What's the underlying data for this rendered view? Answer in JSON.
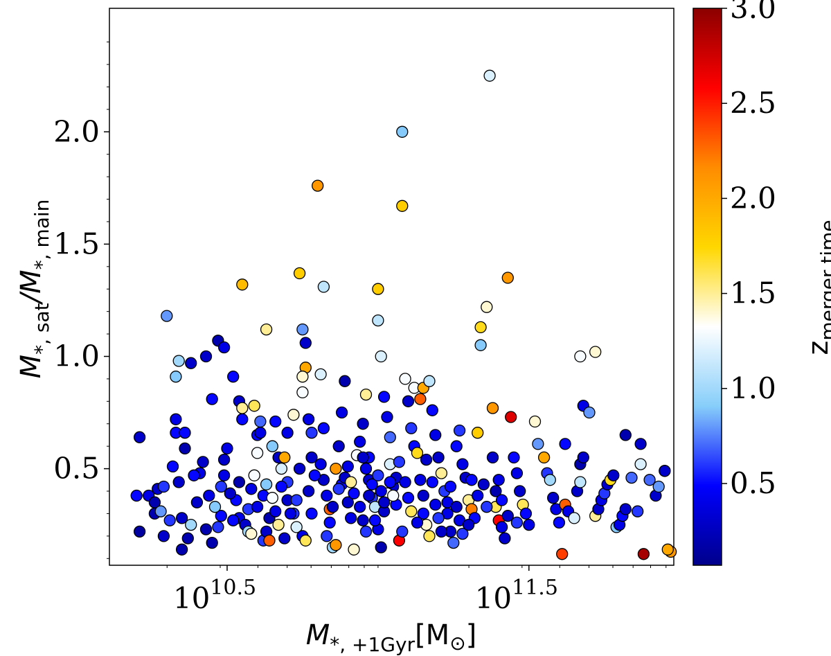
{
  "chart_data": {
    "type": "scatter",
    "title": "",
    "xlabel": {
      "main": "M",
      "sub": "*, +1Gyr",
      "units": "[M",
      "units_sub": "⊙",
      "units_close": "]"
    },
    "ylabel": {
      "num": "M",
      "num_sub": "*, sat",
      "slash": "/",
      "den": "M",
      "den_sub": "*, main"
    },
    "x_scale": "log10",
    "xlim_log10": [
      10.11,
      11.98
    ],
    "ylim": [
      0.07,
      2.55
    ],
    "x_ticks": [
      {
        "log10": 10.5,
        "base": "10",
        "exp": "10.5"
      },
      {
        "log10": 11.5,
        "base": "10",
        "exp": "11.5"
      }
    ],
    "y_ticks": [
      "0.5",
      "1.0",
      "1.5",
      "2.0"
    ],
    "colorbar": {
      "label": "z",
      "label_sub": "merger time",
      "range": [
        0.07,
        3.0
      ],
      "ticks": [
        "0.5",
        "1.0",
        "1.5",
        "2.0",
        "2.5",
        "3.0"
      ],
      "colormap": [
        "#00008b",
        "#0000ff",
        "#87cefa",
        "#ffffff",
        "#ffd700",
        "#ff8c00",
        "#ff0000",
        "#8b0000"
      ]
    },
    "points": [
      [
        10.21,
        0.64,
        0.3
      ],
      [
        10.2,
        0.38,
        0.5
      ],
      [
        10.24,
        0.38,
        0.4
      ],
      [
        10.21,
        0.22,
        0.15
      ],
      [
        10.26,
        0.35,
        0.2
      ],
      [
        10.27,
        0.41,
        0.3
      ],
      [
        10.29,
        0.42,
        0.6
      ],
      [
        10.26,
        0.3,
        0.2
      ],
      [
        10.28,
        0.31,
        0.8
      ],
      [
        10.32,
        0.51,
        0.5
      ],
      [
        10.34,
        0.44,
        0.3
      ],
      [
        10.33,
        0.66,
        0.5
      ],
      [
        10.33,
        0.72,
        0.4
      ],
      [
        10.36,
        0.59,
        0.2
      ],
      [
        10.36,
        0.66,
        0.5
      ],
      [
        10.3,
        1.18,
        0.8
      ],
      [
        10.34,
        0.98,
        1.0
      ],
      [
        10.33,
        0.91,
        0.9
      ],
      [
        10.38,
        0.97,
        0.3
      ],
      [
        10.35,
        0.14,
        0.2
      ],
      [
        10.35,
        0.28,
        0.3
      ],
      [
        10.38,
        0.25,
        1.0
      ],
      [
        10.4,
        0.35,
        0.3
      ],
      [
        10.43,
        0.23,
        0.2
      ],
      [
        10.45,
        0.17,
        0.2
      ],
      [
        10.47,
        0.24,
        0.6
      ],
      [
        10.48,
        0.29,
        0.5
      ],
      [
        10.41,
        0.48,
        0.4
      ],
      [
        10.43,
        1.0,
        0.3
      ],
      [
        10.45,
        0.81,
        0.5
      ],
      [
        10.47,
        1.07,
        0.2
      ],
      [
        10.49,
        1.04,
        0.4
      ],
      [
        10.48,
        0.42,
        0.6
      ],
      [
        10.49,
        0.54,
        0.3
      ],
      [
        10.5,
        0.59,
        0.4
      ],
      [
        10.52,
        0.91,
        0.5
      ],
      [
        10.54,
        0.8,
        0.3
      ],
      [
        10.55,
        0.72,
        0.5
      ],
      [
        10.55,
        0.77,
        1.5
      ],
      [
        10.54,
        0.44,
        0.2
      ],
      [
        10.53,
        0.36,
        0.5
      ],
      [
        10.54,
        0.28,
        0.4
      ],
      [
        10.56,
        0.25,
        0.3
      ],
      [
        10.57,
        0.22,
        1.0
      ],
      [
        10.58,
        0.21,
        1.4
      ],
      [
        10.59,
        0.78,
        1.6
      ],
      [
        10.6,
        0.65,
        0.5
      ],
      [
        10.61,
        0.66,
        0.4
      ],
      [
        10.61,
        0.71,
        0.7
      ],
      [
        10.6,
        0.57,
        1.3
      ],
      [
        10.62,
        0.18,
        0.6
      ],
      [
        10.63,
        0.22,
        0.3
      ],
      [
        10.64,
        0.18,
        2.3
      ],
      [
        10.64,
        0.28,
        0.2
      ],
      [
        10.65,
        0.6,
        0.9
      ],
      [
        10.66,
        0.71,
        0.5
      ],
      [
        10.67,
        0.55,
        0.3
      ],
      [
        10.68,
        0.5,
        1.2
      ],
      [
        10.69,
        0.55,
        2.0
      ],
      [
        10.7,
        0.44,
        0.6
      ],
      [
        10.7,
        0.66,
        0.4
      ],
      [
        10.72,
        0.74,
        1.4
      ],
      [
        10.74,
        0.5,
        0.3
      ],
      [
        10.63,
        1.12,
        1.5
      ],
      [
        10.55,
        1.32,
        1.9
      ],
      [
        10.68,
        0.42,
        0.5
      ],
      [
        10.7,
        0.36,
        0.3
      ],
      [
        10.72,
        0.3,
        0.6
      ],
      [
        10.73,
        0.24,
        1.2
      ],
      [
        10.75,
        0.2,
        0.4
      ],
      [
        10.76,
        0.18,
        1.6
      ],
      [
        10.78,
        0.3,
        0.5
      ],
      [
        10.74,
        1.37,
        1.8
      ],
      [
        10.75,
        1.12,
        0.8
      ],
      [
        10.76,
        1.06,
        0.3
      ],
      [
        10.76,
        0.95,
        2.0
      ],
      [
        10.75,
        0.91,
        1.4
      ],
      [
        10.75,
        0.84,
        1.3
      ],
      [
        10.77,
        0.72,
        0.4
      ],
      [
        10.78,
        0.66,
        0.6
      ],
      [
        10.78,
        0.55,
        0.3
      ],
      [
        10.8,
        1.76,
        2.1
      ],
      [
        10.82,
        1.31,
        1.1
      ],
      [
        10.81,
        0.92,
        1.2
      ],
      [
        10.82,
        0.68,
        0.5
      ],
      [
        10.82,
        0.45,
        0.3
      ],
      [
        10.83,
        0.38,
        0.4
      ],
      [
        10.84,
        0.32,
        2.3
      ],
      [
        10.84,
        0.26,
        0.5
      ],
      [
        10.83,
        0.2,
        0.6
      ],
      [
        10.85,
        0.15,
        1.0
      ],
      [
        10.86,
        0.16,
        2.1
      ],
      [
        10.86,
        0.5,
        2.1
      ],
      [
        10.87,
        0.6,
        0.3
      ],
      [
        10.88,
        0.75,
        0.4
      ],
      [
        10.89,
        0.89,
        0.2
      ],
      [
        10.88,
        0.43,
        0.5
      ],
      [
        10.9,
        0.35,
        0.3
      ],
      [
        10.91,
        0.28,
        0.4
      ],
      [
        10.92,
        0.14,
        1.4
      ],
      [
        10.93,
        0.56,
        1.3
      ],
      [
        10.94,
        0.62,
        0.4
      ],
      [
        10.95,
        0.7,
        0.3
      ],
      [
        10.96,
        0.83,
        1.5
      ],
      [
        10.97,
        0.55,
        0.5
      ],
      [
        10.97,
        0.45,
        0.3
      ],
      [
        10.98,
        0.37,
        0.6
      ],
      [
        10.99,
        0.33,
        1.1
      ],
      [
        11.0,
        0.23,
        0.4
      ],
      [
        11.01,
        0.15,
        0.2
      ],
      [
        11.0,
        1.3,
        1.8
      ],
      [
        11.0,
        1.16,
        1.1
      ],
      [
        11.01,
        1.0,
        1.2
      ],
      [
        11.02,
        0.82,
        0.5
      ],
      [
        11.03,
        0.73,
        0.4
      ],
      [
        11.04,
        0.64,
        0.7
      ],
      [
        11.04,
        0.52,
        1.2
      ],
      [
        11.05,
        0.42,
        0.3
      ],
      [
        11.06,
        0.34,
        0.5
      ],
      [
        11.07,
        0.18,
        2.6
      ],
      [
        11.08,
        0.22,
        0.6
      ],
      [
        11.08,
        1.67,
        1.8
      ],
      [
        11.09,
        0.9,
        1.3
      ],
      [
        11.1,
        0.8,
        0.3
      ],
      [
        11.11,
        0.68,
        0.6
      ],
      [
        11.12,
        0.6,
        0.5
      ],
      [
        11.13,
        0.57,
        1.7
      ],
      [
        11.14,
        0.45,
        0.4
      ],
      [
        11.15,
        0.38,
        0.3
      ],
      [
        11.15,
        0.3,
        0.5
      ],
      [
        11.16,
        0.25,
        1.4
      ],
      [
        11.17,
        0.2,
        1.6
      ],
      [
        11.08,
        2.0,
        0.9
      ],
      [
        11.12,
        0.86,
        1.3
      ],
      [
        11.14,
        0.81,
        2.3
      ],
      [
        11.15,
        0.86,
        2.0
      ],
      [
        11.17,
        0.89,
        1.1
      ],
      [
        11.18,
        0.76,
        0.5
      ],
      [
        11.19,
        0.65,
        0.4
      ],
      [
        11.2,
        0.55,
        0.3
      ],
      [
        11.21,
        0.48,
        1.5
      ],
      [
        11.22,
        0.4,
        0.6
      ],
      [
        11.23,
        0.3,
        0.4
      ],
      [
        11.24,
        0.22,
        0.3
      ],
      [
        11.25,
        0.17,
        0.7
      ],
      [
        11.26,
        0.6,
        0.5
      ],
      [
        11.27,
        0.67,
        0.6
      ],
      [
        11.28,
        0.52,
        0.4
      ],
      [
        11.29,
        0.46,
        0.3
      ],
      [
        11.3,
        0.36,
        1.5
      ],
      [
        11.31,
        0.32,
        2.2
      ],
      [
        11.32,
        0.28,
        0.5
      ],
      [
        11.33,
        0.66,
        1.8
      ],
      [
        11.34,
        1.05,
        0.9
      ],
      [
        11.34,
        1.13,
        1.7
      ],
      [
        11.36,
        1.22,
        1.4
      ],
      [
        11.37,
        2.25,
        1.2
      ],
      [
        11.38,
        0.77,
        2.1
      ],
      [
        11.38,
        0.55,
        0.3
      ],
      [
        11.39,
        0.4,
        0.2
      ],
      [
        11.39,
        0.33,
        1.6
      ],
      [
        11.4,
        0.27,
        2.6
      ],
      [
        11.41,
        0.24,
        0.4
      ],
      [
        11.42,
        0.19,
        0.3
      ],
      [
        11.43,
        1.35,
        2.1
      ],
      [
        11.44,
        0.73,
        2.7
      ],
      [
        11.45,
        0.55,
        0.5
      ],
      [
        11.46,
        0.48,
        0.4
      ],
      [
        11.47,
        0.4,
        0.3
      ],
      [
        11.48,
        0.34,
        1.6
      ],
      [
        11.49,
        0.3,
        0.5
      ],
      [
        11.5,
        0.25,
        0.4
      ],
      [
        11.52,
        0.71,
        1.4
      ],
      [
        11.53,
        0.61,
        0.8
      ],
      [
        11.55,
        0.55,
        2.0
      ],
      [
        11.56,
        0.48,
        0.6
      ],
      [
        11.57,
        0.45,
        1.0
      ],
      [
        11.58,
        0.37,
        0.3
      ],
      [
        11.59,
        0.32,
        0.4
      ],
      [
        11.6,
        0.26,
        0.5
      ],
      [
        11.61,
        0.12,
        2.4
      ],
      [
        11.62,
        0.34,
        2.3
      ],
      [
        11.62,
        0.61,
        0.5
      ],
      [
        11.63,
        0.31,
        0.4
      ],
      [
        11.65,
        0.28,
        1.2
      ],
      [
        11.66,
        0.4,
        0.3
      ],
      [
        11.67,
        0.44,
        1.1
      ],
      [
        11.67,
        0.52,
        0.2
      ],
      [
        11.68,
        0.55,
        0.3
      ],
      [
        11.68,
        0.78,
        0.4
      ],
      [
        11.67,
        1.0,
        1.3
      ],
      [
        11.72,
        1.02,
        1.4
      ],
      [
        11.7,
        0.75,
        0.8
      ],
      [
        11.72,
        0.29,
        1.5
      ],
      [
        11.73,
        0.32,
        0.3
      ],
      [
        11.74,
        0.36,
        0.4
      ],
      [
        11.75,
        0.39,
        0.6
      ],
      [
        11.76,
        0.43,
        0.3
      ],
      [
        11.77,
        0.45,
        1.7
      ],
      [
        11.78,
        0.47,
        0.3
      ],
      [
        11.79,
        0.24,
        0.9
      ],
      [
        11.8,
        0.25,
        0.4
      ],
      [
        11.81,
        0.29,
        0.5
      ],
      [
        11.82,
        0.32,
        0.3
      ],
      [
        11.82,
        0.65,
        0.2
      ],
      [
        11.84,
        0.46,
        0.7
      ],
      [
        11.86,
        0.31,
        0.6
      ],
      [
        11.87,
        0.52,
        1.2
      ],
      [
        11.87,
        0.61,
        0.3
      ],
      [
        11.88,
        0.12,
        2.9
      ],
      [
        11.9,
        0.45,
        0.7
      ],
      [
        11.92,
        0.38,
        0.3
      ],
      [
        11.93,
        0.42,
        0.8
      ],
      [
        11.95,
        0.49,
        0.4
      ],
      [
        11.95,
        0.49,
        0.3
      ],
      [
        11.97,
        0.13,
        2.1
      ],
      [
        11.96,
        0.14,
        2.0
      ],
      [
        10.29,
        0.2,
        0.3
      ],
      [
        10.31,
        0.27,
        0.6
      ],
      [
        10.37,
        0.19,
        0.2
      ],
      [
        10.39,
        0.47,
        0.5
      ],
      [
        10.42,
        0.53,
        0.3
      ],
      [
        10.44,
        0.38,
        0.4
      ],
      [
        10.46,
        0.33,
        0.9
      ],
      [
        10.49,
        0.47,
        0.4
      ],
      [
        10.51,
        0.39,
        0.3
      ],
      [
        10.52,
        0.27,
        0.5
      ],
      [
        10.57,
        0.32,
        0.6
      ],
      [
        10.58,
        0.41,
        0.4
      ],
      [
        10.59,
        0.47,
        1.3
      ],
      [
        10.6,
        0.33,
        0.4
      ],
      [
        10.62,
        0.38,
        0.5
      ],
      [
        10.63,
        0.43,
        0.9
      ],
      [
        10.65,
        0.37,
        1.3
      ],
      [
        10.66,
        0.31,
        0.4
      ],
      [
        10.67,
        0.25,
        1.5
      ],
      [
        10.69,
        0.19,
        0.3
      ],
      [
        10.71,
        0.3,
        0.4
      ],
      [
        10.73,
        0.36,
        0.6
      ],
      [
        10.77,
        0.4,
        0.3
      ],
      [
        10.79,
        0.47,
        0.5
      ],
      [
        10.81,
        0.52,
        0.4
      ],
      [
        10.85,
        0.33,
        0.3
      ],
      [
        10.87,
        0.41,
        0.6
      ],
      [
        10.89,
        0.46,
        0.3
      ],
      [
        10.9,
        0.51,
        0.4
      ],
      [
        10.91,
        0.44,
        1.5
      ],
      [
        10.92,
        0.39,
        0.5
      ],
      [
        10.94,
        0.33,
        0.4
      ],
      [
        10.95,
        0.27,
        0.3
      ],
      [
        10.96,
        0.22,
        0.6
      ],
      [
        10.99,
        0.27,
        0.5
      ],
      [
        11.02,
        0.31,
        0.3
      ],
      [
        11.03,
        0.39,
        1.3
      ],
      [
        11.06,
        0.46,
        0.3
      ],
      [
        11.07,
        0.53,
        0.6
      ],
      [
        11.09,
        0.44,
        0.4
      ],
      [
        11.1,
        0.37,
        0.5
      ],
      [
        11.11,
        0.31,
        1.6
      ],
      [
        11.13,
        0.26,
        0.4
      ],
      [
        11.16,
        0.54,
        0.3
      ],
      [
        11.18,
        0.44,
        0.5
      ],
      [
        11.19,
        0.34,
        0.4
      ],
      [
        11.2,
        0.28,
        0.6
      ],
      [
        11.21,
        0.22,
        0.3
      ],
      [
        11.23,
        0.35,
        0.4
      ],
      [
        11.24,
        0.42,
        0.5
      ],
      [
        11.26,
        0.33,
        0.3
      ],
      [
        11.27,
        0.27,
        0.4
      ],
      [
        11.28,
        0.21,
        0.6
      ],
      [
        11.3,
        0.25,
        0.3
      ],
      [
        11.31,
        0.45,
        0.5
      ],
      [
        11.33,
        0.38,
        0.4
      ],
      [
        11.35,
        0.43,
        0.3
      ],
      [
        11.36,
        0.33,
        0.6
      ],
      [
        11.4,
        0.45,
        0.4
      ],
      [
        11.41,
        0.36,
        0.5
      ],
      [
        11.43,
        0.29,
        0.3
      ],
      [
        11.46,
        0.26,
        0.6
      ],
      [
        10.95,
        0.55,
        0.3
      ],
      [
        10.96,
        0.5,
        0.4
      ],
      [
        10.98,
        0.43,
        0.5
      ],
      [
        10.97,
        0.38,
        0.3
      ],
      [
        11.0,
        0.47,
        0.6
      ],
      [
        11.01,
        0.4,
        0.4
      ],
      [
        11.02,
        0.35,
        0.3
      ],
      [
        11.04,
        0.44,
        0.5
      ],
      [
        11.05,
        0.38,
        1.3
      ]
    ]
  }
}
